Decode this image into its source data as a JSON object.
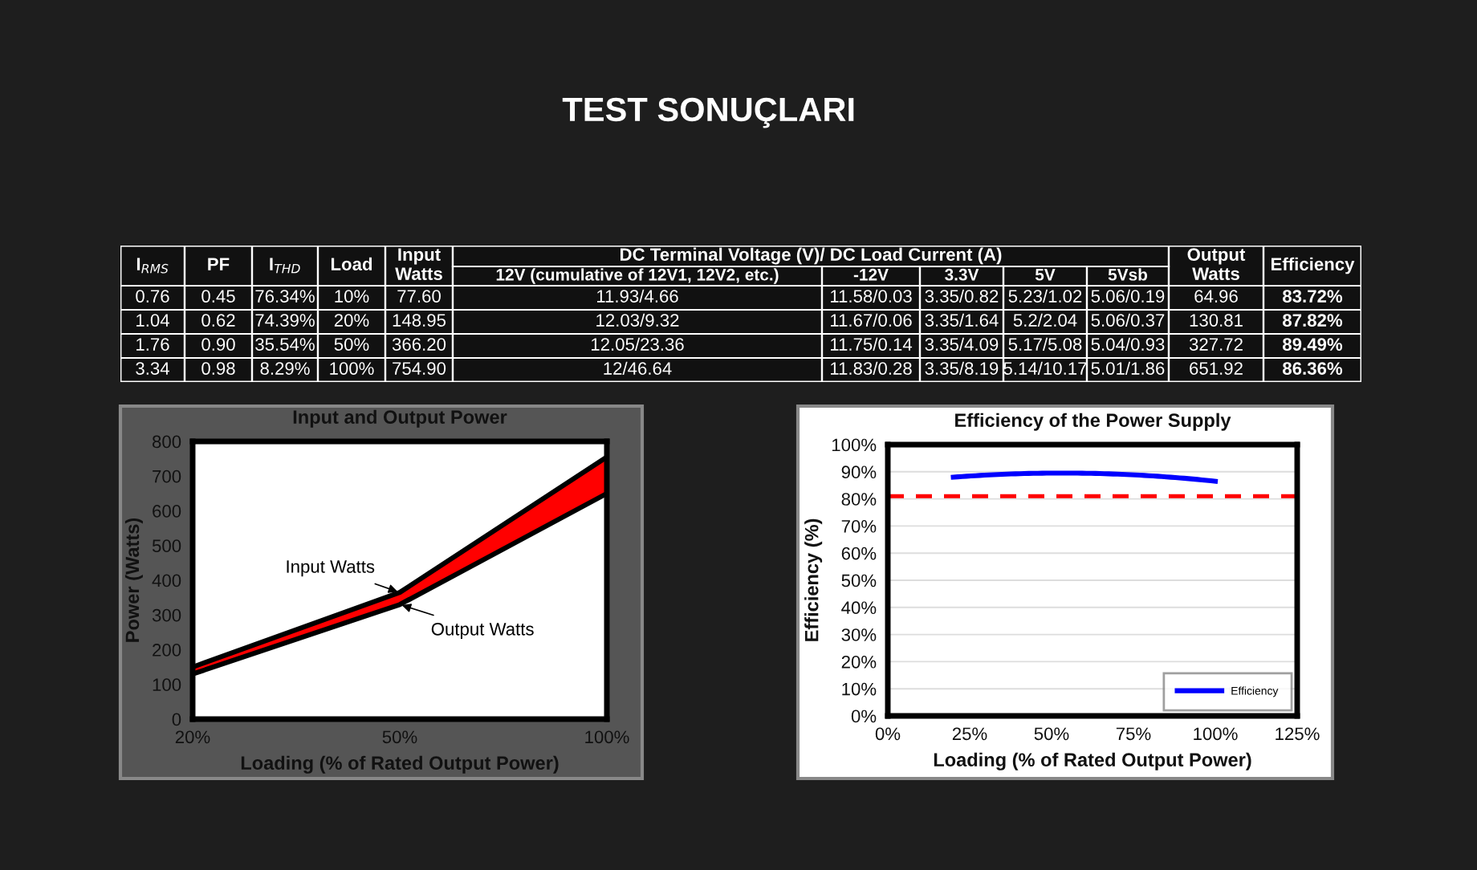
{
  "chart_data": [
    {
      "type": "other",
      "title": "TEST SONUÇLARI",
      "annotations": [
        "DC Terminal Voltage (V)/ DC Load Current (A)"
      ],
      "categories": [
        "I$_{RMS}$",
        "PF",
        "I$_{THD}$",
        "Load",
        "Input Watts",
        "12V (cumulative of 12V1, 12V2, etc.)",
        "-12V",
        "3.3V",
        "5V",
        "5Vsb",
        "Output Watts",
        "Efficiency"
      ],
      "cell_labels": [
        [
          "0.76",
          "0.45",
          "76.34%",
          "10%",
          "77.60",
          "11.93/4.66",
          "11.58/0.03",
          "3.35/0.82",
          "5.23/1.02",
          "5.06/0.19",
          "64.96",
          "83.72%"
        ],
        [
          "1.04",
          "0.62",
          "74.39%",
          "20%",
          "148.95",
          "12.03/9.32",
          "11.67/0.06",
          "3.35/1.64",
          "5.2/2.04",
          "5.06/0.37",
          "130.81",
          "87.82%"
        ],
        [
          "1.76",
          "0.90",
          "35.54%",
          "50%",
          "366.20",
          "12.05/23.36",
          "11.75/0.14",
          "3.35/4.09",
          "5.17/5.08",
          "5.04/0.93",
          "327.72",
          "89.49%"
        ],
        [
          "3.34",
          "0.98",
          "8.29%",
          "100%",
          "754.90",
          "12/46.64",
          "11.83/0.28",
          "3.35/8.19",
          "5.14/10.17",
          "5.01/1.86",
          "651.92",
          "86.36%"
        ]
      ]
    },
    {
      "type": "line",
      "title": "Input and Output Power",
      "xlabel": "Loading (% of Rated Output Power)",
      "ylabel": "Power (Watts)",
      "categories": [
        "20%",
        "50%",
        "100%"
      ],
      "series": [
        {
          "type": "area",
          "name": "Input Watts",
          "color": "#ff0000",
          "values": [
            150,
            365,
            755
          ]
        },
        {
          "name": "Output Watts",
          "color": "#000000",
          "values": [
            130,
            330,
            650
          ]
        }
      ],
      "ylim": [
        0,
        800
      ],
      "yticks": [
        0,
        100,
        200,
        300,
        400,
        500,
        600,
        700,
        800
      ]
    },
    {
      "type": "line",
      "title": "Efficiency of the Power Supply",
      "xlabel": "Loading (% of Rated Output Power)",
      "ylabel": "Efficiency (%)",
      "series": [
        {
          "name": "Efficiency",
          "color": "#0000ff",
          "x": [
            20,
            50,
            100
          ],
          "values": [
            88,
            89.5,
            86.5
          ]
        }
      ],
      "xlim": [
        0,
        125
      ],
      "xticks": [
        {
          "value": 0,
          "label": "0%"
        },
        {
          "value": 25,
          "label": "25%"
        },
        {
          "value": 50,
          "label": "50%"
        },
        {
          "value": 75,
          "label": "75%"
        },
        {
          "value": 100,
          "label": "100%"
        },
        {
          "value": 125,
          "label": "125%"
        }
      ],
      "ylim": [
        0,
        100
      ],
      "yticks": [
        {
          "value": 0,
          "label": "0%"
        },
        {
          "value": 10,
          "label": "10%"
        },
        {
          "value": 20,
          "label": "20%"
        },
        {
          "value": 30,
          "label": "30%"
        },
        {
          "value": 40,
          "label": "40%"
        },
        {
          "value": 50,
          "label": "50%"
        },
        {
          "value": 60,
          "label": "60%"
        },
        {
          "value": 70,
          "label": "70%"
        },
        {
          "value": 80,
          "label": "80%"
        },
        {
          "value": 90,
          "label": "90%"
        },
        {
          "value": 100,
          "label": "100%"
        }
      ],
      "grid": "y",
      "legend": "bottom right",
      "ref_lines": [
        {
          "axis": "y",
          "value": 81,
          "color": "#ff0000",
          "line_style": "dashed"
        }
      ]
    }
  ]
}
